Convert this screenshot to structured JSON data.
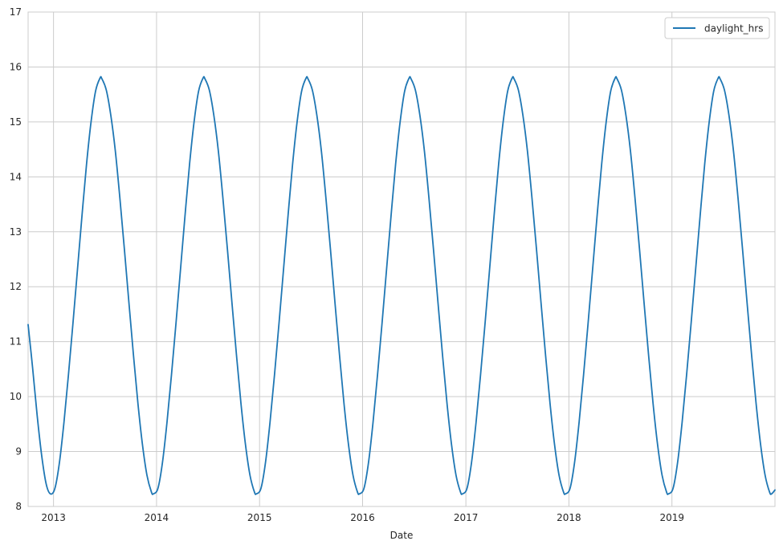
{
  "chart_data": {
    "type": "line",
    "title": "",
    "xlabel": "Date",
    "ylabel": "",
    "x_range": [
      "2012-10-03",
      "2020-01-01"
    ],
    "ylim": [
      8,
      17
    ],
    "x_ticks": [
      {
        "date": "2013-01-01",
        "label": "2013"
      },
      {
        "date": "2014-01-01",
        "label": "2014"
      },
      {
        "date": "2015-01-01",
        "label": "2015"
      },
      {
        "date": "2016-01-01",
        "label": "2016"
      },
      {
        "date": "2017-01-01",
        "label": "2017"
      },
      {
        "date": "2018-01-01",
        "label": "2018"
      },
      {
        "date": "2019-01-01",
        "label": "2019"
      }
    ],
    "y_ticks": [
      8,
      9,
      10,
      11,
      12,
      13,
      14,
      15,
      16,
      17
    ],
    "grid": true,
    "legend": {
      "position": "top-right"
    },
    "series": [
      {
        "name": "daylight_hrs",
        "color": "#1f77b4",
        "x": [
          "2012-10-03",
          "2012-10-19",
          "2012-11-04",
          "2012-11-20",
          "2012-12-06",
          "2012-12-21",
          "2013-01-06",
          "2013-01-22",
          "2013-02-07",
          "2013-02-23",
          "2013-03-11",
          "2013-03-27",
          "2013-04-12",
          "2013-04-28",
          "2013-05-14",
          "2013-05-30",
          "2013-06-15",
          "2013-06-21",
          "2013-07-07",
          "2013-07-23",
          "2013-08-08",
          "2013-08-24",
          "2013-09-09",
          "2013-09-25",
          "2013-10-11",
          "2013-10-27",
          "2013-11-12",
          "2013-11-28",
          "2013-12-14",
          "2013-12-21",
          "2014-01-06",
          "2014-01-22",
          "2014-02-07",
          "2014-02-23",
          "2014-03-11",
          "2014-03-27",
          "2014-04-12",
          "2014-04-28",
          "2014-05-14",
          "2014-05-30",
          "2014-06-15",
          "2014-06-21",
          "2014-07-07",
          "2014-07-23",
          "2014-08-08",
          "2014-08-24",
          "2014-09-09",
          "2014-09-25",
          "2014-10-11",
          "2014-10-27",
          "2014-11-12",
          "2014-11-28",
          "2014-12-14",
          "2014-12-21",
          "2015-01-06",
          "2015-01-22",
          "2015-02-07",
          "2015-02-23",
          "2015-03-11",
          "2015-03-27",
          "2015-04-12",
          "2015-04-28",
          "2015-05-14",
          "2015-05-30",
          "2015-06-15",
          "2015-06-21",
          "2015-07-07",
          "2015-07-23",
          "2015-08-08",
          "2015-08-24",
          "2015-09-09",
          "2015-09-25",
          "2015-10-11",
          "2015-10-27",
          "2015-11-12",
          "2015-11-28",
          "2015-12-14",
          "2015-12-21",
          "2016-01-06",
          "2016-01-22",
          "2016-02-07",
          "2016-02-23",
          "2016-03-10",
          "2016-03-26",
          "2016-04-11",
          "2016-04-27",
          "2016-05-13",
          "2016-05-29",
          "2016-06-14",
          "2016-06-20",
          "2016-07-06",
          "2016-07-22",
          "2016-08-07",
          "2016-08-23",
          "2016-09-08",
          "2016-09-24",
          "2016-10-10",
          "2016-10-26",
          "2016-11-11",
          "2016-11-27",
          "2016-12-13",
          "2016-12-20",
          "2017-01-05",
          "2017-01-21",
          "2017-02-06",
          "2017-02-22",
          "2017-03-10",
          "2017-03-26",
          "2017-04-11",
          "2017-04-27",
          "2017-05-13",
          "2017-05-29",
          "2017-06-14",
          "2017-06-20",
          "2017-07-06",
          "2017-07-22",
          "2017-08-07",
          "2017-08-23",
          "2017-09-08",
          "2017-09-24",
          "2017-10-10",
          "2017-10-26",
          "2017-11-11",
          "2017-11-27",
          "2017-12-13",
          "2017-12-20",
          "2018-01-05",
          "2018-01-21",
          "2018-02-06",
          "2018-02-22",
          "2018-03-10",
          "2018-03-26",
          "2018-04-11",
          "2018-04-27",
          "2018-05-13",
          "2018-05-29",
          "2018-06-14",
          "2018-06-20",
          "2018-07-06",
          "2018-07-22",
          "2018-08-07",
          "2018-08-23",
          "2018-09-08",
          "2018-09-24",
          "2018-10-10",
          "2018-10-26",
          "2018-11-11",
          "2018-11-27",
          "2018-12-13",
          "2018-12-20",
          "2019-01-05",
          "2019-01-21",
          "2019-02-06",
          "2019-02-22",
          "2019-03-10",
          "2019-03-26",
          "2019-04-11",
          "2019-04-27",
          "2019-05-13",
          "2019-05-29",
          "2019-06-14",
          "2019-06-20",
          "2019-07-06",
          "2019-07-22",
          "2019-08-07",
          "2019-08-23",
          "2019-09-08",
          "2019-09-24",
          "2019-10-10",
          "2019-10-26",
          "2019-11-11",
          "2019-11-27",
          "2019-12-13",
          "2019-12-20",
          "2020-01-01"
        ],
        "y": [
          11.31,
          10.52,
          9.66,
          8.93,
          8.41,
          8.23,
          8.33,
          8.8,
          9.53,
          10.4,
          11.34,
          12.32,
          13.3,
          14.23,
          15.0,
          15.56,
          15.8,
          15.79,
          15.58,
          15.12,
          14.47,
          13.62,
          12.69,
          11.72,
          10.77,
          9.88,
          9.13,
          8.57,
          8.26,
          8.23,
          8.33,
          8.8,
          9.53,
          10.4,
          11.34,
          12.32,
          13.3,
          14.23,
          15.0,
          15.56,
          15.8,
          15.79,
          15.58,
          15.12,
          14.47,
          13.62,
          12.69,
          11.72,
          10.77,
          9.88,
          9.13,
          8.57,
          8.26,
          8.23,
          8.33,
          8.8,
          9.53,
          10.4,
          11.34,
          12.32,
          13.3,
          14.23,
          15.0,
          15.56,
          15.8,
          15.79,
          15.58,
          15.12,
          14.47,
          13.62,
          12.69,
          11.72,
          10.77,
          9.88,
          9.13,
          8.57,
          8.26,
          8.23,
          8.33,
          8.8,
          9.53,
          10.4,
          11.34,
          12.32,
          13.3,
          14.23,
          15.0,
          15.56,
          15.8,
          15.79,
          15.58,
          15.12,
          14.47,
          13.62,
          12.69,
          11.72,
          10.77,
          9.88,
          9.13,
          8.57,
          8.26,
          8.23,
          8.33,
          8.8,
          9.53,
          10.4,
          11.34,
          12.32,
          13.3,
          14.23,
          15.0,
          15.56,
          15.8,
          15.79,
          15.58,
          15.12,
          14.47,
          13.62,
          12.69,
          11.72,
          10.77,
          9.88,
          9.13,
          8.57,
          8.26,
          8.23,
          8.33,
          8.8,
          9.53,
          10.4,
          11.34,
          12.32,
          13.3,
          14.23,
          15.0,
          15.56,
          15.8,
          15.79,
          15.58,
          15.12,
          14.47,
          13.62,
          12.69,
          11.72,
          10.77,
          9.88,
          9.13,
          8.57,
          8.26,
          8.23,
          8.33,
          8.8,
          9.53,
          10.4,
          11.34,
          12.32,
          13.3,
          14.23,
          15.0,
          15.56,
          15.8,
          15.79,
          15.58,
          15.12,
          14.47,
          13.62,
          12.69,
          11.72,
          10.77,
          9.88,
          9.13,
          8.57,
          8.26,
          8.23,
          8.3
        ]
      }
    ]
  }
}
